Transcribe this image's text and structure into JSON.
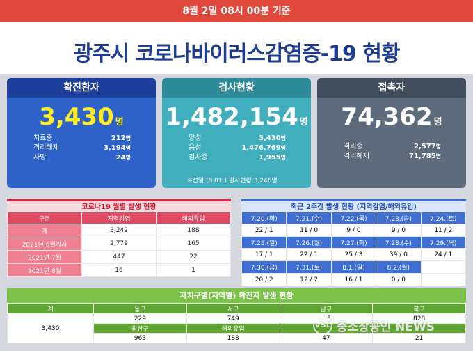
{
  "header": {
    "date_note": "8월 2일 08시 00분 기준",
    "title": "광주시 코로나바이러스감염증-19 현황"
  },
  "confirmed": {
    "title": "확진환자",
    "value": "3,430",
    "unit": "명",
    "rows": [
      {
        "label": "치료중",
        "value": "212"
      },
      {
        "label": "격리해제",
        "value": "3,194"
      },
      {
        "label": "사망",
        "value": "24"
      }
    ]
  },
  "tests": {
    "title": "검사현황",
    "value": "1,482,154",
    "unit": "명",
    "rows": [
      {
        "label": "양성",
        "value": "3,430"
      },
      {
        "label": "음성",
        "value": "1,476,769"
      },
      {
        "label": "검사중",
        "value": "1,955"
      }
    ],
    "note": "※전일 (8.01.) 검사현황 3,246명"
  },
  "contacts": {
    "title": "접촉자",
    "value": "74,362",
    "unit": "명",
    "rows": [
      {
        "label": "격리중",
        "value": "2,577"
      },
      {
        "label": "격리해제",
        "value": "71,785"
      }
    ]
  },
  "unit_small": "명",
  "monthly": {
    "title": "코로나19 월별 발생 현황",
    "headers": [
      "구분",
      "지역감염",
      "해외유입"
    ],
    "rows": [
      [
        "계",
        "3,242",
        "188"
      ],
      [
        "2021년 6월까지",
        "2,779",
        "165"
      ],
      [
        "2021년 7월",
        "447",
        "22"
      ],
      [
        "2021년 8월",
        "16",
        "1"
      ]
    ]
  },
  "recent": {
    "title": "최근 2주간 발생 현황 (지역감염/해외유입)",
    "rows": [
      {
        "dates": [
          "7.20.(화)",
          "7.21.(수)",
          "7.22.(목)",
          "7.23.(금)",
          "7.24.(토)"
        ],
        "values": [
          "22 / 1",
          "11 / 0",
          "9 / 0",
          "9 / 0",
          "11 / 2"
        ]
      },
      {
        "dates": [
          "7.25.(일)",
          "7.26.(월)",
          "7.27.(화)",
          "7.28.(수)",
          "7.29.(목)"
        ],
        "values": [
          "17 / 1",
          "22 / 1",
          "25 / 3",
          "39 / 0",
          "24 / 1"
        ]
      },
      {
        "dates": [
          "7.30.(금)",
          "7.31.(토)",
          "8.1.(일)",
          "8.2.(월)",
          ""
        ],
        "values": [
          "20 / 2",
          "12 / 2",
          "16 / 1",
          "0 / 0",
          ""
        ]
      }
    ]
  },
  "district": {
    "title": "자치구별(지역별) 확진자 발생 현황",
    "total_label": "계",
    "total": "3,430",
    "row1_headers": [
      "동구",
      "서구",
      "남구",
      "북구"
    ],
    "row1_values": [
      "229",
      "749",
      "...5",
      "828"
    ],
    "row2_headers": [
      "광산구",
      "해외유입",
      "",
      ""
    ],
    "row2_values": [
      "963",
      "188",
      "47",
      "21"
    ]
  },
  "watermark": {
    "logo": "VSL",
    "text": "중소상공인 NEWS"
  }
}
